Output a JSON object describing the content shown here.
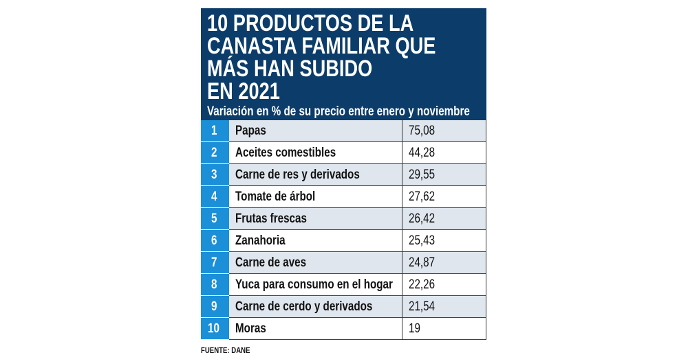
{
  "header": {
    "title_lines": [
      "10 PRODUCTOS DE LA",
      "CANASTA FAMILIAR QUE",
      "MÁS HAN SUBIDO",
      "EN 2021"
    ],
    "subtitle": "Variación en % de su precio entre enero y noviembre"
  },
  "table": {
    "rows": [
      [
        "1",
        "Papas",
        "75,08"
      ],
      [
        "2",
        "Aceites comestibles",
        "44,28"
      ],
      [
        "3",
        "Carne de res y derivados",
        "29,55"
      ],
      [
        "4",
        "Tomate de árbol",
        "27,62"
      ],
      [
        "5",
        "Frutas frescas",
        "26,42"
      ],
      [
        "6",
        "Zanahoria",
        "25,43"
      ],
      [
        "7",
        "Carne de aves",
        "24,87"
      ],
      [
        "8",
        "Yuca para consumo en el hogar",
        "22,26"
      ],
      [
        "9",
        "Carne de cerdo y derivados",
        "21,54"
      ],
      [
        "10",
        "Moras",
        "19"
      ]
    ]
  },
  "source": "FUENTE: DANE"
}
